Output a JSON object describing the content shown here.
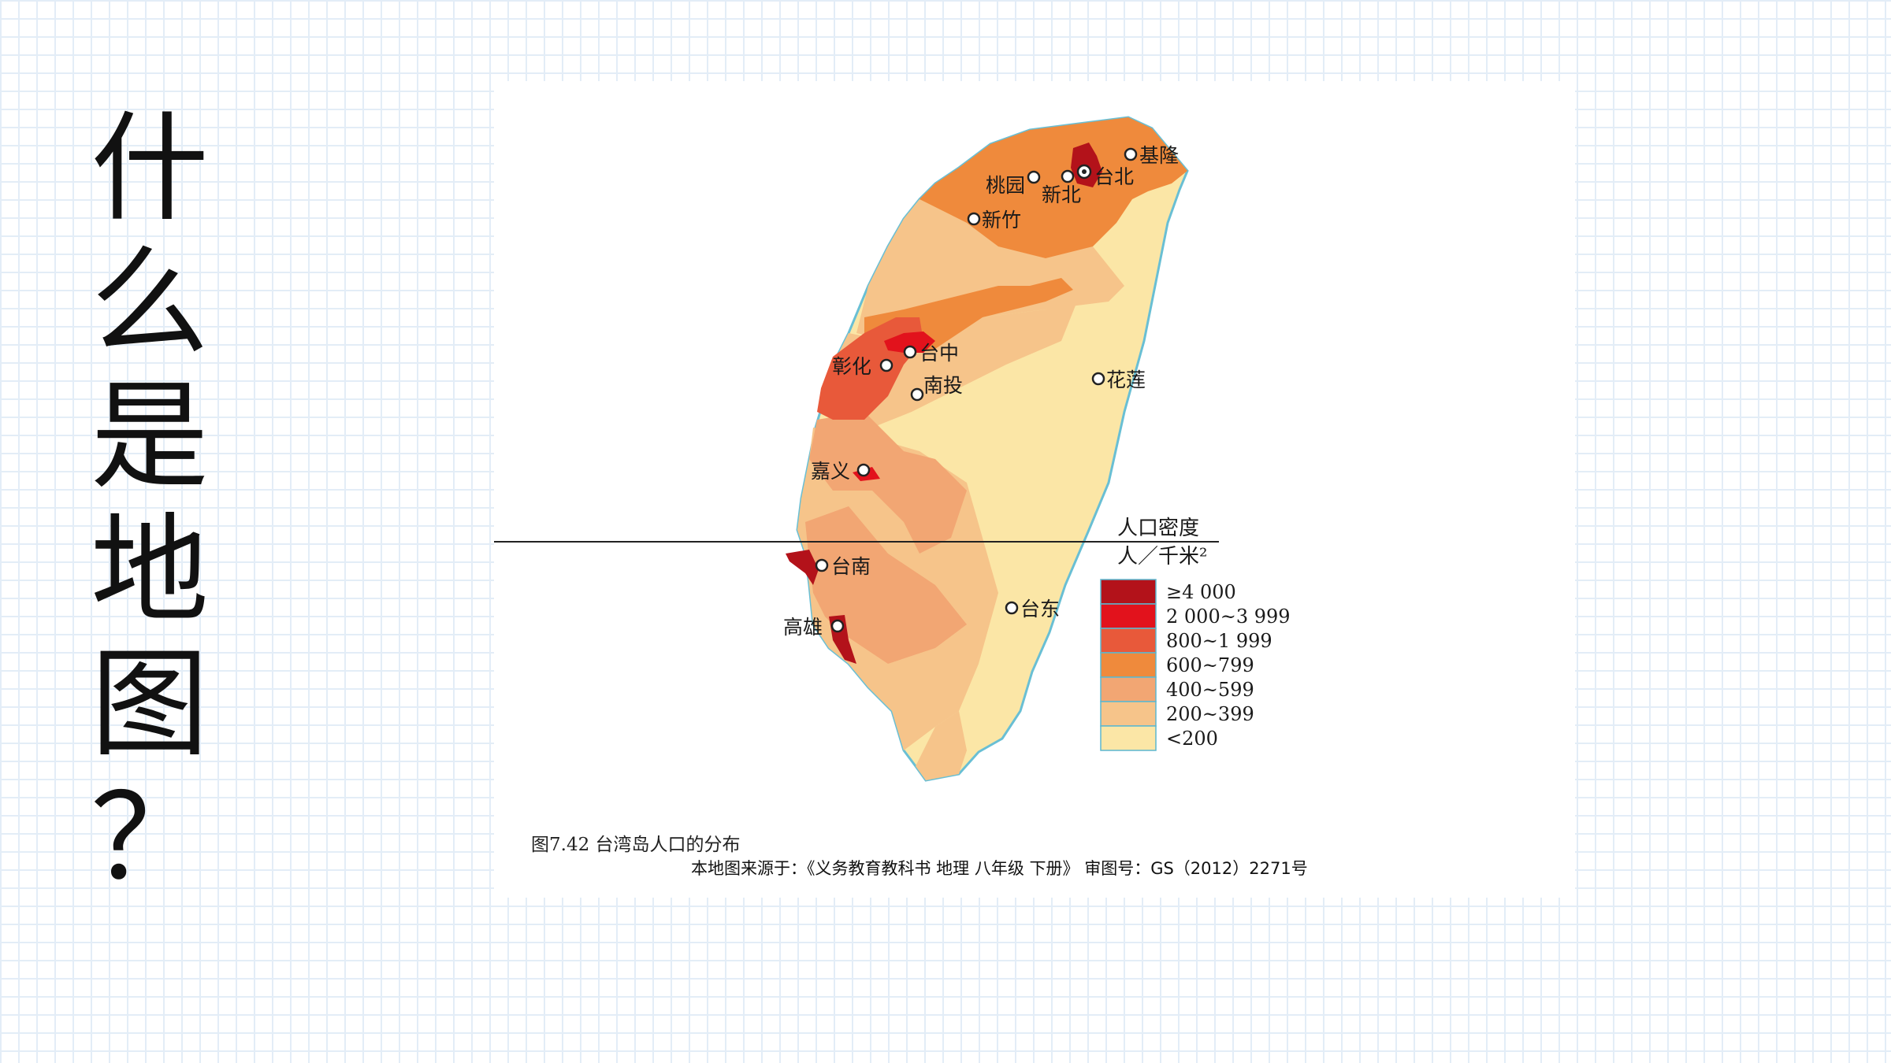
{
  "title_chars": [
    "什",
    "么",
    "是",
    "地",
    "图",
    "？"
  ],
  "map": {
    "cities": [
      {
        "name": "基隆"
      },
      {
        "name": "台北"
      },
      {
        "name": "桃园"
      },
      {
        "name": "新北"
      },
      {
        "name": "新竹"
      },
      {
        "name": "台中"
      },
      {
        "name": "彰化"
      },
      {
        "name": "南投"
      },
      {
        "name": "花莲"
      },
      {
        "name": "嘉义"
      },
      {
        "name": "台南"
      },
      {
        "name": "高雄"
      },
      {
        "name": "台东"
      }
    ],
    "legend": {
      "title": "人口密度",
      "unit": "人／千米²",
      "items": [
        {
          "label": "≥4 000",
          "color": "#b3121a"
        },
        {
          "label": "2 000~3 999",
          "color": "#e2121c"
        },
        {
          "label": "800~1 999",
          "color": "#e8593a"
        },
        {
          "label": "600~799",
          "color": "#ef8a3c"
        },
        {
          "label": "400~599",
          "color": "#f2a673"
        },
        {
          "label": "200~399",
          "color": "#f6c48a"
        },
        {
          "label": "<200",
          "color": "#fbe6a6"
        }
      ]
    },
    "caption": "图7.42 台湾岛人口的分布",
    "source": "本地图来源于：《义务教育教科书 地理 八年级 下册》 审图号：GS（2012）2271号"
  }
}
